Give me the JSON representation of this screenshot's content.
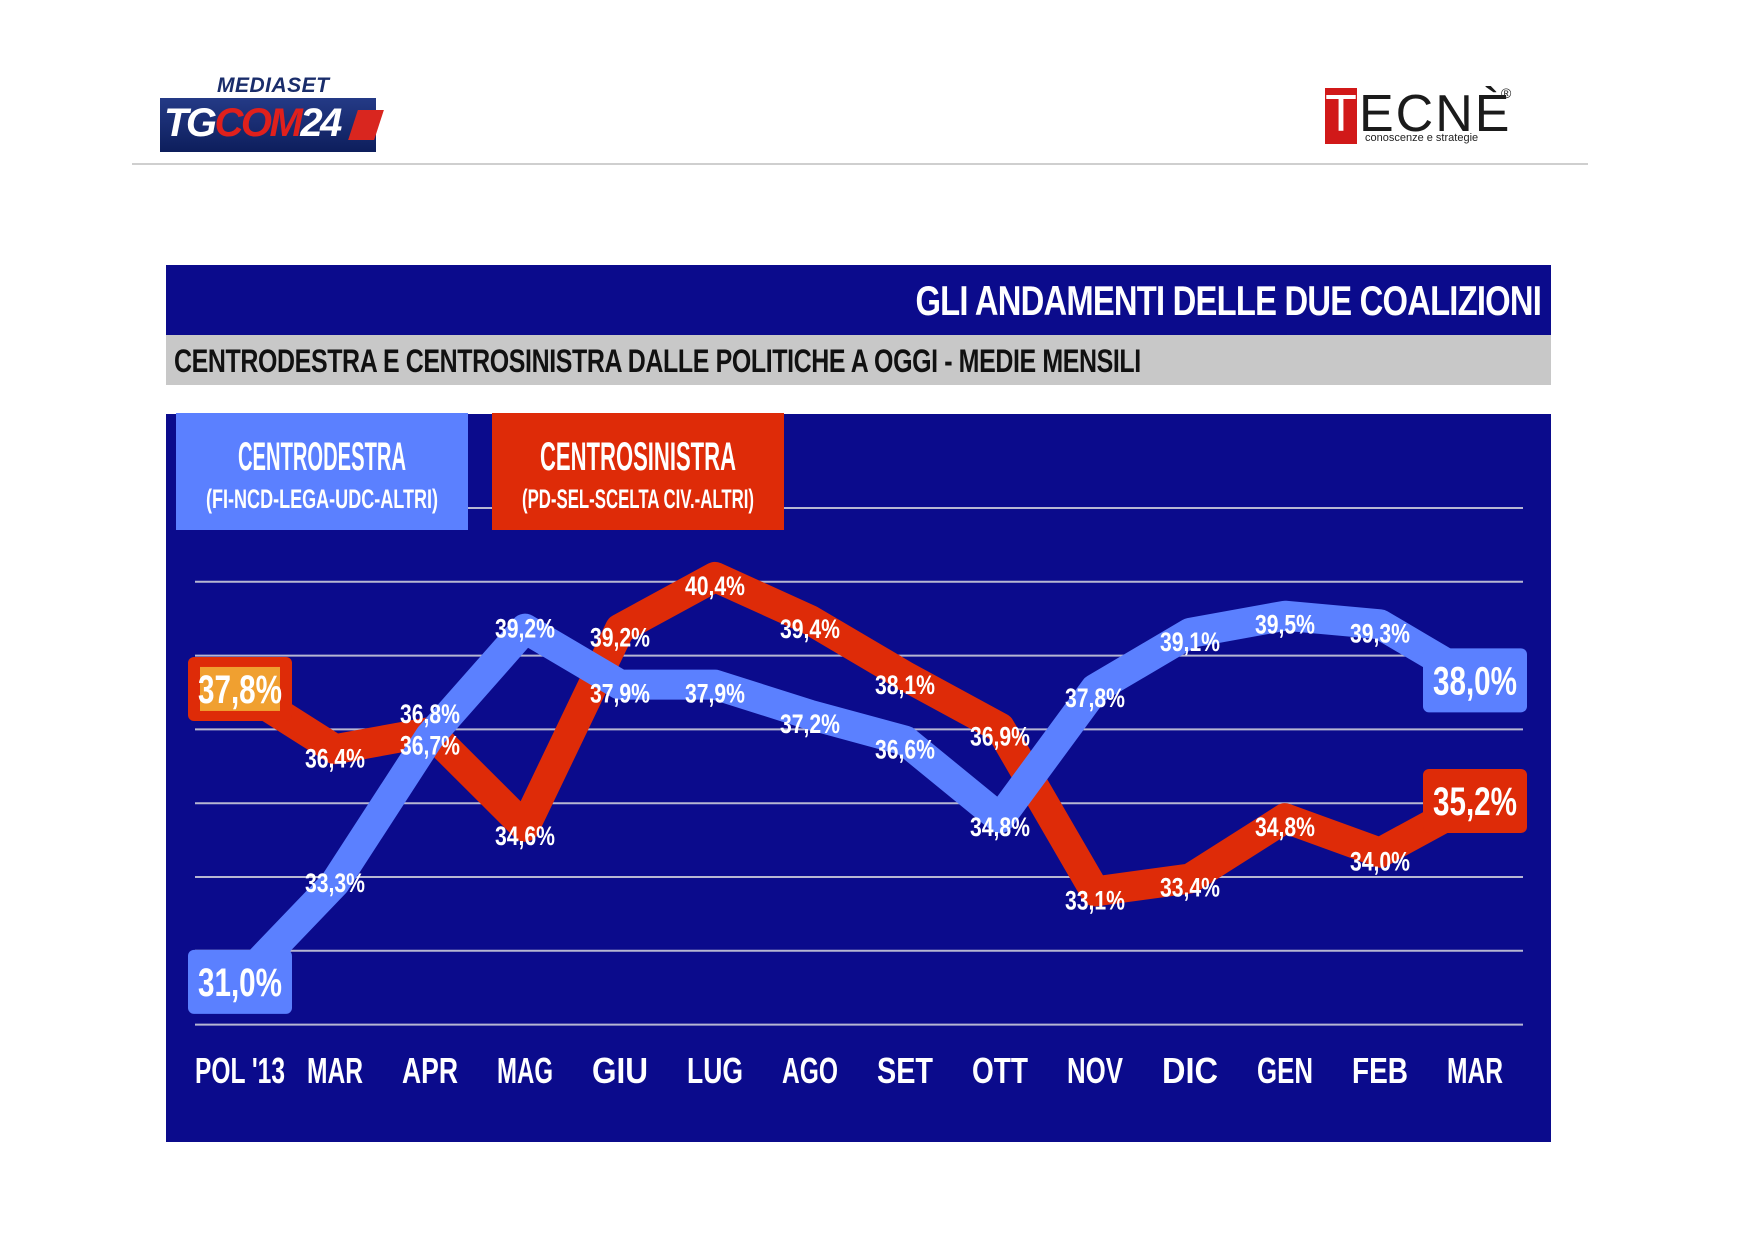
{
  "header": {
    "left_logo": {
      "line1": "MEDIASET",
      "line2_a": "TG",
      "line2_b": "COM",
      "line2_c": "24"
    },
    "right_logo": {
      "t": "T",
      "rest": "ECNÈ",
      "reg": "®",
      "tagline": "conoscenze e strategie"
    }
  },
  "title": "GLI ANDAMENTI DELLE DUE COALIZIONI",
  "subtitle": "CENTRODESTRA E CENTROSINISTRA DALLE POLITICHE A OGGI - MEDIE MENSILI",
  "colors": {
    "frame": "#0b0b8c",
    "centrodestra": "#5b80ff",
    "centrosinistra": "#de2b08",
    "highlight_first_label": "#f0a030",
    "gridline": "#b7b7d2"
  },
  "chart_data": {
    "type": "line",
    "categories": [
      "POL '13",
      "MAR",
      "APR",
      "MAG",
      "GIU",
      "LUG",
      "AGO",
      "SET",
      "OTT",
      "NOV",
      "DIC",
      "GEN",
      "FEB",
      "MAR"
    ],
    "series": [
      {
        "name": "CENTRODESTRA",
        "subname": "(FI-NCD-LEGA-UDC-ALTRI)",
        "values": [
          31.0,
          33.3,
          36.7,
          39.2,
          37.9,
          37.9,
          37.2,
          36.6,
          34.8,
          37.8,
          39.1,
          39.5,
          39.3,
          38.0
        ],
        "labels": [
          "31,0%",
          "33,3%",
          "36,7%",
          "39,2%",
          "37,9%",
          "37,9%",
          "37,2%",
          "36,6%",
          "34,8%",
          "37,8%",
          "39,1%",
          "39,5%",
          "39,3%",
          "38,0%"
        ]
      },
      {
        "name": "CENTROSINISTRA",
        "subname": "(PD-SEL-SCELTA CIV.-ALTRI)",
        "values": [
          37.8,
          36.4,
          36.8,
          34.6,
          39.2,
          40.4,
          39.4,
          38.1,
          36.9,
          33.1,
          33.4,
          34.8,
          34.0,
          35.2
        ],
        "labels": [
          "37,8%",
          "36,4%",
          "36,8%",
          "34,6%",
          "39,2%",
          "40,4%",
          "39,4%",
          "38,1%",
          "36,9%",
          "33,1%",
          "33,4%",
          "34,8%",
          "34,0%",
          "35,2%"
        ]
      }
    ],
    "ylim": [
      30,
      42
    ],
    "grid": true,
    "legend": "top-left"
  }
}
